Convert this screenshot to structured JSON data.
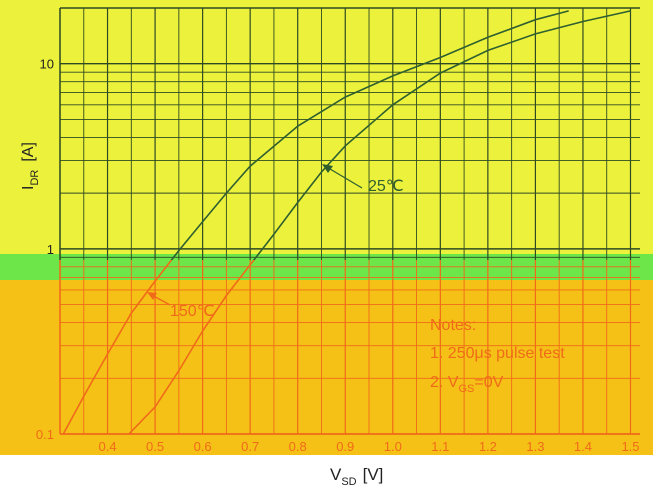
{
  "chart_data": {
    "type": "line",
    "xlabel": "V",
    "xlabel_sub": "SD",
    "xlabel_unit": "[V]",
    "ylabel": "I",
    "ylabel_sub": "DR",
    "ylabel_unit": "[A]",
    "y_scale": "log",
    "xlim": [
      0.3,
      1.52
    ],
    "ylim": [
      0.1,
      20
    ],
    "x_ticks": [
      "0.4",
      "0.5",
      "0.6",
      "0.7",
      "0.8",
      "0.9",
      "1.0",
      "1.1",
      "1.2",
      "1.3",
      "1.4",
      "1.5"
    ],
    "y_ticks": [
      "0.1",
      "1",
      "10"
    ],
    "grid": true,
    "series": [
      {
        "name": "25℃",
        "color": "#2f5f2f",
        "x": [
          0.445,
          0.5,
          0.55,
          0.6,
          0.65,
          0.7,
          0.75,
          0.8,
          0.85,
          0.9,
          1.0,
          1.1,
          1.2,
          1.3,
          1.4,
          1.5
        ],
        "y": [
          0.1,
          0.14,
          0.22,
          0.36,
          0.56,
          0.82,
          1.2,
          1.78,
          2.6,
          3.6,
          6.0,
          8.9,
          11.8,
          14.5,
          16.9,
          19.3
        ]
      },
      {
        "name": "150℃",
        "color": "#2f5f2f",
        "x": [
          0.307,
          0.35,
          0.4,
          0.45,
          0.5,
          0.55,
          0.6,
          0.65,
          0.7,
          0.8,
          0.9,
          1.0,
          1.1,
          1.2,
          1.3,
          1.37
        ],
        "y": [
          0.1,
          0.16,
          0.27,
          0.45,
          0.67,
          0.98,
          1.4,
          2.0,
          2.8,
          4.6,
          6.6,
          8.6,
          10.8,
          13.9,
          17.3,
          19.3
        ]
      }
    ],
    "annotations": [
      "25℃",
      "150℃"
    ],
    "notes": {
      "title": "Notes:",
      "line1": "1. 250μs pulse test",
      "line2_prefix": "2. V",
      "line2_sub": "GS",
      "line2_suffix": "=0V"
    },
    "colors": {
      "upper_bg": "#ecf23c",
      "green_band": "#6de64a",
      "lower_bg": "#f5c116",
      "grid_upper": "#2f4a22",
      "grid_lower": "#f06a1a",
      "curve_upper": "#2f5f2f",
      "curve_lower": "#f06a1a",
      "text_upper": "#222222",
      "text_lower": "#f06a1a"
    }
  }
}
